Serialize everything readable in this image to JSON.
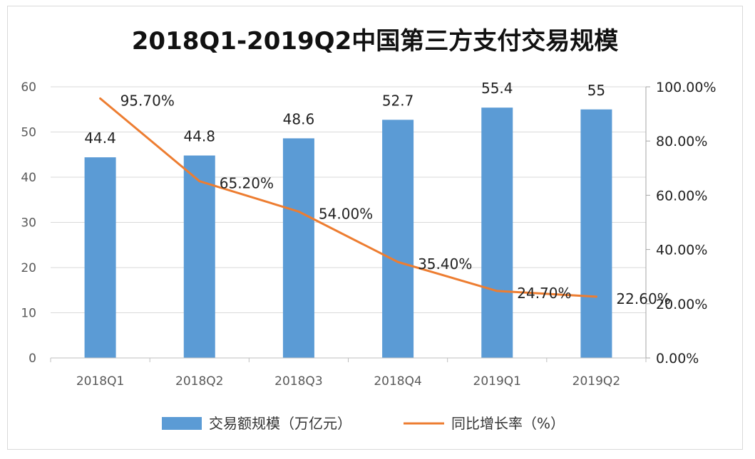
{
  "chart_data": {
    "type": "bar",
    "title": "2018Q1-2019Q2中国第三方支付交易规模",
    "categories": [
      "2018Q1",
      "2018Q2",
      "2018Q3",
      "2018Q4",
      "2019Q1",
      "2019Q2"
    ],
    "series": [
      {
        "name": "交易额规模（万亿元）",
        "type": "bar",
        "axis": "left",
        "values": [
          44.4,
          44.8,
          48.6,
          52.7,
          55.4,
          55
        ],
        "labels": [
          "44.4",
          "44.8",
          "48.6",
          "52.7",
          "55.4",
          "55"
        ],
        "color": "#5b9bd5"
      },
      {
        "name": "同比增长率（%）",
        "type": "line",
        "axis": "right",
        "values": [
          95.7,
          65.2,
          54.0,
          35.4,
          24.7,
          22.6
        ],
        "labels": [
          "95.70%",
          "65.20%",
          "54.00%",
          "35.40%",
          "24.70%",
          "22.60%"
        ],
        "color": "#ed7d31"
      }
    ],
    "y_left": {
      "ylim": [
        0,
        60
      ],
      "ticks": [
        "0",
        "10",
        "20",
        "30",
        "40",
        "50",
        "60"
      ]
    },
    "y_right": {
      "ylim": [
        0,
        100
      ],
      "ticks": [
        "0.00%",
        "20.00%",
        "40.00%",
        "60.00%",
        "80.00%",
        "100.00%"
      ]
    },
    "grid": true,
    "legend": "bottom"
  }
}
